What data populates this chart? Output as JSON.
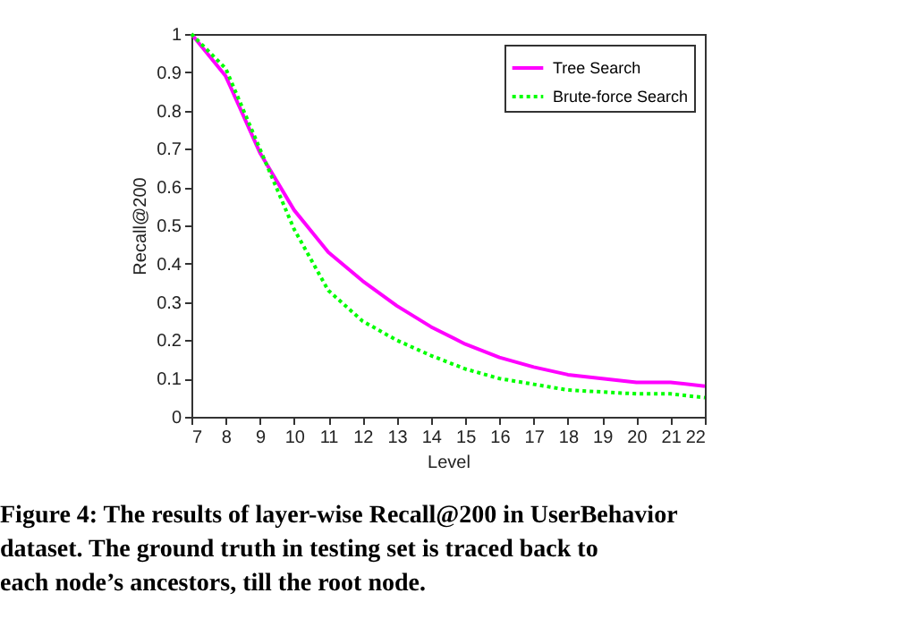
{
  "chart_data": {
    "type": "line",
    "xlabel": "Level",
    "ylabel": "Recall@200",
    "x": [
      7,
      8,
      9,
      10,
      11,
      12,
      13,
      14,
      15,
      16,
      17,
      18,
      19,
      20,
      21,
      22
    ],
    "series": [
      {
        "name": "Tree Search",
        "color": "#ff00ff",
        "line_style": "solid",
        "values": [
          1.0,
          0.89,
          0.69,
          0.54,
          0.43,
          0.355,
          0.29,
          0.235,
          0.19,
          0.155,
          0.13,
          0.11,
          0.1,
          0.09,
          0.09,
          0.08
        ]
      },
      {
        "name": "Brute-force Search",
        "color": "#00ff00",
        "line_style": "dotted",
        "values": [
          1.0,
          0.91,
          0.7,
          0.49,
          0.33,
          0.25,
          0.2,
          0.16,
          0.125,
          0.1,
          0.085,
          0.07,
          0.065,
          0.06,
          0.06,
          0.05
        ]
      }
    ],
    "xlim": [
      7,
      22
    ],
    "xticks": [
      7,
      8,
      9,
      10,
      11,
      12,
      13,
      14,
      15,
      16,
      17,
      18,
      19,
      20,
      21,
      22
    ],
    "ylim": [
      0,
      1
    ],
    "yticks": [
      0,
      0.1,
      0.2,
      0.3,
      0.4,
      0.5,
      0.6,
      0.7,
      0.8,
      0.9,
      1
    ],
    "grid": false,
    "legend": "top right",
    "marker": "none",
    "annotations": [
      "Figure 4: The results of layer-wise Recall@200 in UserBehavior dataset. The ground truth in testing set is traced back to each node’s ancestors, till the root node."
    ]
  }
}
